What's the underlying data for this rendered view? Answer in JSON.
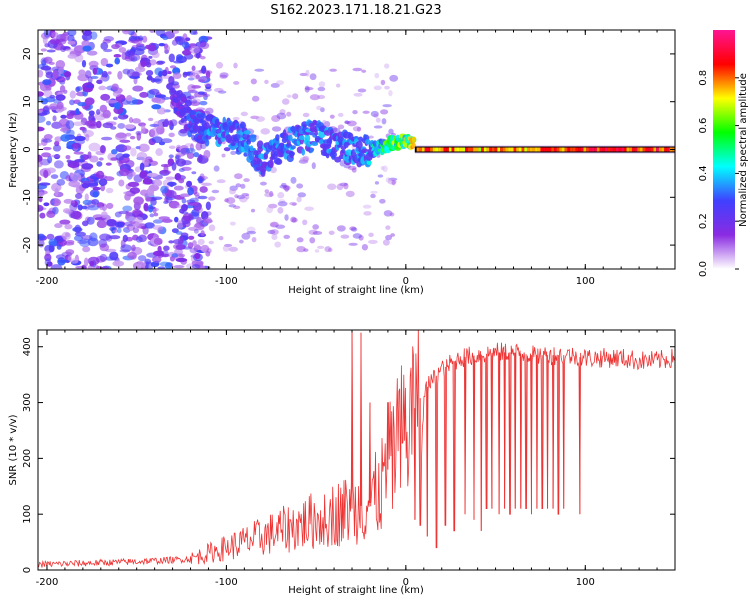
{
  "title": "S162.2023.171.18.21.G23",
  "chart_data": [
    {
      "type": "heatmap",
      "title": "S162.2023.171.18.21.G23",
      "xlabel": "Height of straight line (km)",
      "ylabel": "Frequency (Hz)",
      "xlim": [
        -205,
        150
      ],
      "ylim": [
        -25,
        25
      ],
      "xticks": [
        -200,
        -100,
        0,
        100
      ],
      "yticks": [
        -20,
        -10,
        0,
        10,
        20
      ],
      "colorbar": {
        "label": "Normalized spectral amplitude",
        "range": [
          0,
          1
        ],
        "ticks": [
          "0.0",
          "0.2",
          "0.4",
          "0.6",
          "0.8"
        ],
        "colors": [
          "#ffffff",
          "#8a2be2",
          "#4040ff",
          "#00ffff",
          "#00ff00",
          "#ffff00",
          "#ff0000",
          "#ff1493"
        ]
      },
      "frequency_trace": {
        "x": [
          -130,
          -120,
          -110,
          -100,
          -90,
          -80,
          -70,
          -60,
          -50,
          -40,
          -30,
          -20,
          -10,
          0,
          10,
          20,
          40,
          60,
          80,
          100,
          150
        ],
        "y": [
          12,
          6,
          4,
          3,
          2,
          -2,
          0,
          2,
          3,
          1,
          0,
          0,
          1,
          2,
          0,
          0,
          0,
          0,
          0,
          0,
          0
        ],
        "amplitude": [
          0.2,
          0.25,
          0.3,
          0.3,
          0.3,
          0.3,
          0.3,
          0.3,
          0.3,
          0.3,
          0.3,
          0.35,
          0.5,
          0.6,
          0.9,
          0.9,
          0.85,
          0.85,
          0.9,
          0.95,
          0.95
        ]
      },
      "noise_region": {
        "x": [
          -205,
          -120
        ],
        "y": [
          -25,
          25
        ],
        "amplitude": 0.2
      }
    },
    {
      "type": "line",
      "xlabel": "Height of straight line (km)",
      "ylabel": "SNR (10 * v/v)",
      "xlim": [
        -205,
        150
      ],
      "ylim": [
        0,
        430
      ],
      "xticks": [
        -200,
        -100,
        0,
        100
      ],
      "yticks": [
        0,
        100,
        200,
        300,
        400
      ],
      "color": "#ee3333",
      "x": [
        -205,
        -180,
        -150,
        -130,
        -120,
        -110,
        -100,
        -90,
        -80,
        -70,
        -60,
        -50,
        -40,
        -30,
        -20,
        -15,
        -10,
        -5,
        0,
        5,
        10,
        15,
        20,
        25,
        30,
        40,
        50,
        60,
        70,
        80,
        90,
        100,
        110,
        120,
        130,
        140,
        150
      ],
      "y": [
        10,
        12,
        15,
        18,
        20,
        30,
        40,
        50,
        60,
        70,
        80,
        90,
        100,
        110,
        120,
        140,
        180,
        220,
        250,
        290,
        320,
        340,
        360,
        370,
        380,
        385,
        390,
        390,
        385,
        385,
        385,
        380,
        380,
        380,
        375,
        375,
        380
      ],
      "spikes": [
        {
          "x": -30,
          "y": 430
        },
        {
          "x": -25,
          "y": 425
        },
        {
          "x": -20,
          "y": 300
        },
        {
          "x": -10,
          "y": 300
        }
      ],
      "dropouts": {
        "x": [
          5,
          8,
          12,
          17,
          22,
          27,
          33,
          38,
          42,
          45,
          48,
          52,
          55,
          58,
          61,
          64,
          67,
          70,
          73,
          76,
          79,
          82,
          85,
          88,
          97
        ],
        "y": [
          90,
          80,
          60,
          40,
          80,
          70,
          100,
          90,
          70,
          110,
          110,
          100,
          110,
          100,
          110,
          110,
          110,
          100,
          110,
          110,
          110,
          110,
          100,
          110,
          100
        ]
      }
    }
  ]
}
